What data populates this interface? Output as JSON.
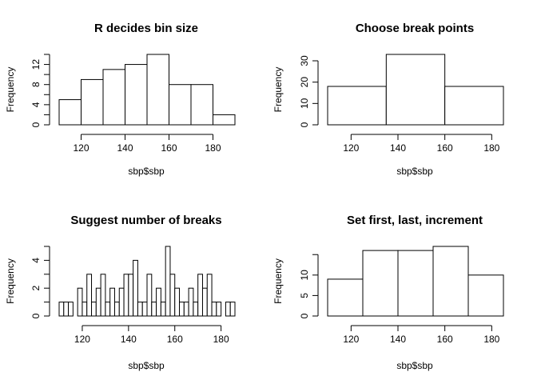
{
  "chart_data": [
    {
      "type": "bar",
      "title": "R decides bin size",
      "xlabel": "sbp$sbp",
      "ylabel": "Frequency",
      "breaks": [
        110,
        120,
        130,
        140,
        150,
        160,
        170,
        180,
        190
      ],
      "values": [
        5,
        9,
        11,
        12,
        14,
        8,
        8,
        2
      ],
      "xlim": [
        110,
        190
      ],
      "ylim": [
        0,
        14
      ],
      "xticks": [
        120,
        140,
        160,
        180
      ],
      "yticks": [
        0,
        4,
        8,
        12
      ],
      "yticks_minor": [
        2,
        6,
        10,
        14
      ],
      "ytick_labels": [
        "0",
        "4",
        "8",
        "12"
      ]
    },
    {
      "type": "bar",
      "title": "Choose break points",
      "xlabel": "sbp$sbp",
      "ylabel": "Frequency",
      "breaks": [
        110,
        135,
        160,
        185
      ],
      "values": [
        18,
        33,
        18
      ],
      "xlim": [
        110,
        185
      ],
      "ylim": [
        0,
        33
      ],
      "xticks": [
        120,
        140,
        160,
        180
      ],
      "yticks": [
        0,
        10,
        20,
        30
      ],
      "yticks_minor": [],
      "ytick_labels": [
        "0",
        "10",
        "20",
        "30"
      ]
    },
    {
      "type": "bar",
      "title": "Suggest number of breaks",
      "xlabel": "sbp$sbp",
      "ylabel": "Frequency",
      "breaks": [
        110,
        112,
        114,
        116,
        118,
        120,
        122,
        124,
        126,
        128,
        130,
        132,
        134,
        136,
        138,
        140,
        142,
        144,
        146,
        148,
        150,
        152,
        154,
        156,
        158,
        160,
        162,
        164,
        166,
        168,
        170,
        172,
        174,
        176,
        178,
        180,
        182,
        184,
        186
      ],
      "values": [
        1,
        1,
        1,
        0,
        2,
        1,
        3,
        1,
        2,
        3,
        1,
        2,
        1,
        2,
        3,
        3,
        4,
        1,
        1,
        3,
        1,
        2,
        1,
        5,
        3,
        2,
        1,
        1,
        2,
        1,
        3,
        2,
        3,
        1,
        1,
        0,
        1,
        1
      ],
      "xlim": [
        110,
        186
      ],
      "ylim": [
        0,
        5
      ],
      "xticks": [
        120,
        140,
        160,
        180
      ],
      "yticks": [
        0,
        2,
        4
      ],
      "yticks_minor": [
        1,
        3,
        5
      ],
      "ytick_labels": [
        "0",
        "2",
        "4"
      ]
    },
    {
      "type": "bar",
      "title": "Set first, last, increment",
      "xlabel": "sbp$sbp",
      "ylabel": "Frequency",
      "breaks": [
        110,
        125,
        140,
        155,
        170,
        185
      ],
      "values": [
        9,
        16,
        16,
        17,
        10
      ],
      "xlim": [
        110,
        185
      ],
      "ylim": [
        0,
        17
      ],
      "xticks": [
        120,
        140,
        160,
        180
      ],
      "yticks": [
        0,
        5,
        10
      ],
      "yticks_minor": [
        15
      ],
      "ytick_labels": [
        "0",
        "5",
        "10"
      ]
    }
  ]
}
